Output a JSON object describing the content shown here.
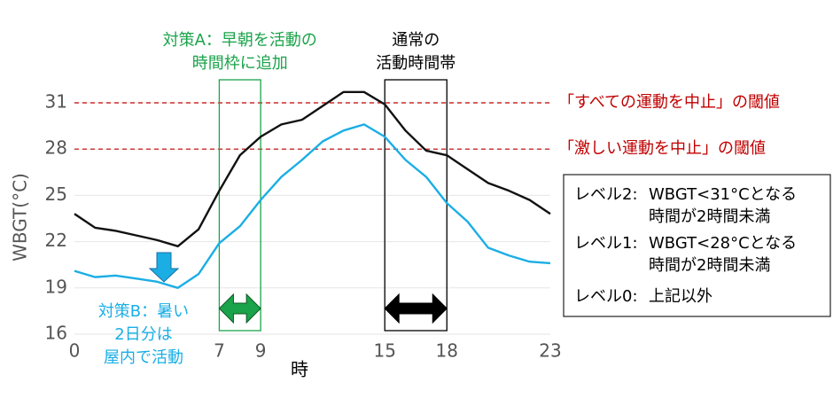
{
  "chart_data": {
    "type": "line",
    "x": [
      0,
      1,
      2,
      3,
      4,
      5,
      6,
      7,
      8,
      9,
      10,
      11,
      12,
      13,
      14,
      15,
      16,
      17,
      18,
      19,
      20,
      21,
      22,
      23
    ],
    "xlim": [
      0,
      23
    ],
    "xticks": [
      0,
      7,
      9,
      15,
      18,
      23
    ],
    "xlabel": "時",
    "ylim": [
      16,
      32
    ],
    "yticks": [
      16,
      19,
      22,
      25,
      28,
      31
    ],
    "ylabel": "WBGT(°C)",
    "grid": true,
    "series": [
      {
        "color": "#111111",
        "values": [
          23.8,
          22.9,
          22.7,
          22.4,
          22.1,
          21.7,
          22.8,
          25.3,
          27.6,
          28.8,
          29.6,
          29.9,
          30.8,
          31.7,
          31.7,
          30.9,
          29.2,
          27.9,
          27.6,
          26.7,
          25.8,
          25.3,
          24.7,
          23.8
        ]
      },
      {
        "color": "#1aaee5",
        "values": [
          20.1,
          19.7,
          19.8,
          19.6,
          19.4,
          19.0,
          19.9,
          21.9,
          23.0,
          24.7,
          26.2,
          27.3,
          28.5,
          29.2,
          29.6,
          28.8,
          27.3,
          26.2,
          24.5,
          23.3,
          21.6,
          21.1,
          20.7,
          20.6
        ]
      }
    ],
    "thresholds": [
      {
        "value": 31,
        "label": "「すべての運動を中止」の閾値",
        "color": "#c00000"
      },
      {
        "value": 28,
        "label": "「激しい運動を中止」の閾値",
        "color": "#c00000"
      }
    ],
    "bands": [
      {
        "from": 7,
        "to": 9,
        "color": "#1aa34a",
        "label": [
          "対策A：早朝を活動の",
          "時間枠に追加"
        ]
      },
      {
        "from": 15,
        "to": 18,
        "color": "#000000",
        "label": [
          "通常の",
          "活動時間帯"
        ]
      }
    ],
    "note": {
      "color": "#1aaee5",
      "label": [
        "対策B：暑い",
        "2日分は",
        "屋内で活動"
      ]
    },
    "levels": [
      {
        "level": "レベル2:",
        "text": [
          "WBGT<31°Cとなる",
          "時間が2時間未満"
        ]
      },
      {
        "level": "レベル1:",
        "text": [
          "WBGT<28°Cとなる",
          "時間が2時間未満"
        ]
      },
      {
        "level": "レベル0:",
        "text": [
          "上記以外"
        ]
      }
    ]
  }
}
